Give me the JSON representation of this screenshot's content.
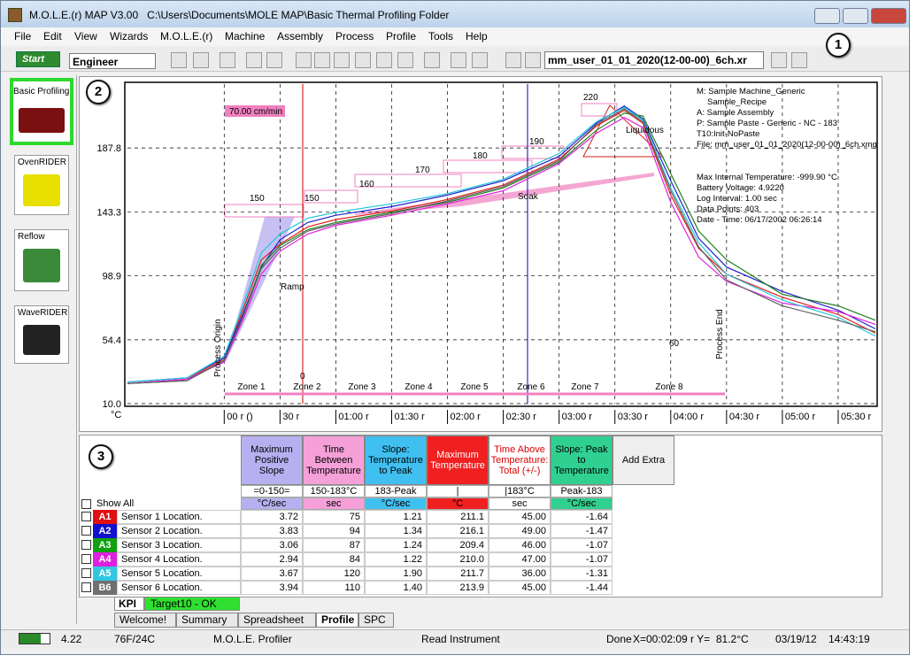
{
  "window": {
    "title": "M.O.L.E.(r) MAP V3.00   C:\\Users\\Documents\\MOLE MAP\\Basic Thermal Profiling Folder"
  },
  "menu": [
    "File",
    "Edit",
    "View",
    "Wizards",
    "M.O.L.E.(r)",
    "Machine",
    "Assembly",
    "Process",
    "Profile",
    "Tools",
    "Help"
  ],
  "toolbar": {
    "start": "Start",
    "user": "Engineer",
    "file": "mm_user_01_01_2020(12-00-00)_6ch.xr"
  },
  "callouts": [
    "1",
    "2",
    "3"
  ],
  "sidebar": [
    "Basic Profiling",
    "OvenRIDER",
    "Reflow",
    "WaveRIDER"
  ],
  "chart": {
    "type": "line",
    "y_unit": "°C",
    "xlim": [
      -52,
      350
    ],
    "ylim": [
      10,
      232.2
    ],
    "yticks": [
      {
        "value": 10,
        "label": "10.0"
      },
      54.4,
      98.9,
      143.3,
      187.8
    ],
    "xticks": [
      {
        "value": 0,
        "label": "00 r ()"
      },
      {
        "value": 30,
        "label": "30 r"
      },
      {
        "value": 60,
        "label": "01:00 r"
      },
      {
        "value": 90,
        "label": "01:30 r"
      },
      {
        "value": 120,
        "label": "02:00 r"
      },
      {
        "value": 150,
        "label": "02:30 r"
      },
      {
        "value": 180,
        "label": "03:00 r"
      },
      {
        "value": 210,
        "label": "03:30 r"
      },
      {
        "value": 240,
        "label": "04:00 r"
      },
      {
        "value": 270,
        "label": "04:30 r"
      },
      {
        "value": 300,
        "label": "05:00 r"
      },
      {
        "value": 330,
        "label": "05:30 r"
      }
    ],
    "grid": true,
    "x": [
      -52,
      -20,
      0,
      10,
      20,
      30,
      45,
      60,
      90,
      120,
      150,
      180,
      200,
      215,
      225,
      240,
      255,
      270,
      300,
      330,
      350
    ],
    "series": [
      {
        "color": "#e02020",
        "values": [
          24,
          27,
          41,
          75,
          110,
          121,
          133,
          138,
          144,
          152,
          162,
          180,
          203,
          214,
          205,
          155,
          118,
          100,
          84,
          72,
          59
        ]
      },
      {
        "color": "#2020d0",
        "values": [
          25,
          28,
          42,
          72,
          105,
          124,
          136,
          141,
          147,
          155,
          165,
          182,
          205,
          217,
          208,
          165,
          125,
          105,
          88,
          75,
          62
        ]
      },
      {
        "color": "#208020",
        "values": [
          24,
          26,
          40,
          70,
          106,
          120,
          131,
          136,
          143,
          150,
          160,
          178,
          200,
          212,
          210,
          170,
          130,
          110,
          86,
          78,
          68
        ]
      },
      {
        "color": "#e020e0",
        "values": [
          24,
          27,
          39,
          68,
          100,
          116,
          128,
          134,
          141,
          149,
          158,
          177,
          198,
          209,
          202,
          150,
          112,
          95,
          80,
          74,
          65
        ]
      },
      {
        "color": "#20c8d8",
        "values": [
          25,
          28,
          43,
          78,
          115,
          128,
          139,
          143,
          149,
          156,
          166,
          184,
          206,
          216,
          207,
          160,
          122,
          100,
          82,
          70,
          57
        ]
      },
      {
        "color": "#606060",
        "values": [
          24,
          26,
          40,
          70,
          104,
          118,
          130,
          135,
          142,
          151,
          161,
          179,
          204,
          215,
          206,
          158,
          119,
          96,
          78,
          68,
          60
        ]
      }
    ],
    "annotations": [
      "70.00 cm/min",
      "150",
      "150",
      "160",
      "170",
      "180",
      "190",
      "220",
      "Liquidous",
      "Soak",
      "Ramp",
      "60",
      "0",
      "Process Origin",
      "Process End"
    ],
    "zones": [
      "Zone 1",
      "Zone 2",
      "Zone 3",
      "Zone 4",
      "Zone 5",
      "Zone 6",
      "Zone 7",
      "Zone 8"
    ],
    "info": [
      "M: Sample Machine_Generic",
      "Sample_Recipe",
      "A: Sample Assembly",
      "P: Sample Paste - Generic - NC - 183",
      "T10:Init-NoPaste",
      "File: mm_user_01_01_2020(12-00-00)_6ch.xmg",
      "Max Internal Temperature: -999.90 °C",
      "Battery Voltage: 4.9220",
      "Log Interval: 1.00 sec",
      "Data Points: 403",
      "Date - Time: 06/17/2002 06:26:14"
    ]
  },
  "table": {
    "headers": [
      "Maximum Positive Slope",
      "Time Between Temperature",
      "Slope: Temperature to Peak",
      "Maximum Temperature",
      "Time Above Temperature: Total (+/-)",
      "Slope: Peak to Temperature",
      "Add Extra"
    ],
    "criteria": [
      "=0-150=",
      "150-183°C",
      "183-Peak",
      "|",
      "|183°C",
      "Peak-183"
    ],
    "units": [
      "°C/sec",
      "sec",
      "°C/sec",
      "°C",
      "sec",
      "°C/sec"
    ],
    "show_all": "Show All",
    "rows": [
      {
        "id": "A1",
        "name": "Sensor 1 Location.",
        "cells": [
          "3.72",
          "75",
          "1.21",
          "211.1",
          "45.00",
          "-1.64"
        ]
      },
      {
        "id": "A2",
        "name": "Sensor 2 Location.",
        "cells": [
          "3.83",
          "94",
          "1.34",
          "216.1",
          "49.00",
          "-1.47"
        ]
      },
      {
        "id": "A3",
        "name": "Sensor 3 Location.",
        "cells": [
          "3.06",
          "87",
          "1.24",
          "209.4",
          "46.00",
          "-1.07"
        ]
      },
      {
        "id": "A4",
        "name": "Sensor 4 Location.",
        "cells": [
          "2.94",
          "84",
          "1.22",
          "210.0",
          "47.00",
          "-1.07"
        ]
      },
      {
        "id": "A5",
        "name": "Sensor 5 Location.",
        "cells": [
          "3.67",
          "120",
          "1.90",
          "211.7",
          "36.00",
          "-1.31"
        ]
      },
      {
        "id": "B6",
        "name": "Sensor 6 Location.",
        "cells": [
          "3.94",
          "110",
          "1.40",
          "213.9",
          "45.00",
          "-1.44"
        ]
      }
    ]
  },
  "tabs": {
    "sheets": [
      "KPI",
      "Target10 - OK"
    ],
    "views": [
      "Welcome!",
      "Summary",
      "Spreadsheet",
      "Profile",
      "SPC"
    ]
  },
  "status": [
    "4.22",
    "76F/24C",
    "M.O.L.E. Profiler",
    "Read Instrument",
    "Done",
    "X=00:02:09 r Y=  81.2°C",
    "03/19/12",
    "14:43:19"
  ]
}
